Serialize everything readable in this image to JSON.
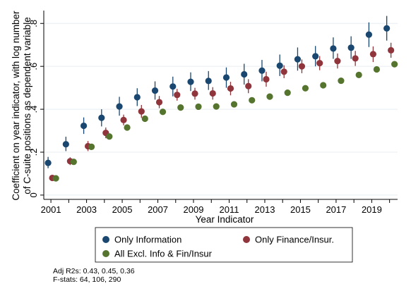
{
  "chart_data": {
    "type": "scatter",
    "ylabel": [
      "Coefficient on year indicator, with log number",
      "of C-suite positions as dependent variable"
    ],
    "xlabel": "Year Indicator",
    "x_tick_labels": [
      "2001",
      "2003",
      "2005",
      "2007",
      "2009",
      "2011",
      "2013",
      "2015",
      "2017",
      "2019"
    ],
    "y_tick_labels": [
      "0",
      ".2",
      ".4",
      ".6",
      ".8"
    ],
    "y_ticks": [
      0,
      0.2,
      0.4,
      0.6,
      0.8
    ],
    "x_range": [
      2000.6,
      2020.45
    ],
    "y_range": [
      -0.02,
      0.86
    ],
    "grid": "horizontal",
    "legend_position": "bottom",
    "series": [
      {
        "name": "Only Information",
        "color": "#1a476f",
        "x": [
          2001,
          2002,
          2003,
          2004,
          2005,
          2006,
          2007,
          2008,
          2009,
          2010,
          2011,
          2012,
          2013,
          2014,
          2015,
          2016,
          2017,
          2018,
          2019,
          2020
        ],
        "y": [
          0.15,
          0.237,
          0.323,
          0.36,
          0.413,
          0.456,
          0.487,
          0.506,
          0.528,
          0.532,
          0.548,
          0.563,
          0.58,
          0.603,
          0.633,
          0.647,
          0.683,
          0.687,
          0.748,
          0.777
        ],
        "ci_low": [
          0.125,
          0.205,
          0.285,
          0.32,
          0.37,
          0.415,
          0.445,
          0.46,
          0.485,
          0.49,
          0.5,
          0.515,
          0.53,
          0.555,
          0.58,
          0.6,
          0.635,
          0.635,
          0.69,
          0.72
        ],
        "ci_high": [
          0.178,
          0.272,
          0.362,
          0.4,
          0.458,
          0.498,
          0.53,
          0.552,
          0.572,
          0.578,
          0.595,
          0.612,
          0.63,
          0.655,
          0.688,
          0.695,
          0.735,
          0.74,
          0.805,
          0.835
        ]
      },
      {
        "name": "Only Finance/Insur.",
        "color": "#90353b",
        "x": [
          2001,
          2002,
          2003,
          2004,
          2005,
          2006,
          2007,
          2008,
          2009,
          2010,
          2011,
          2012,
          2013,
          2014,
          2015,
          2016,
          2017,
          2018,
          2019,
          2020
        ],
        "y": [
          0.08,
          0.158,
          0.228,
          0.29,
          0.35,
          0.39,
          0.433,
          0.467,
          0.473,
          0.474,
          0.497,
          0.508,
          0.54,
          0.575,
          0.6,
          0.615,
          0.625,
          0.637,
          0.657,
          0.675
        ],
        "ci_low": [
          0.068,
          0.14,
          0.205,
          0.265,
          0.325,
          0.36,
          0.405,
          0.44,
          0.445,
          0.445,
          0.465,
          0.475,
          0.505,
          0.545,
          0.568,
          0.582,
          0.59,
          0.602,
          0.62,
          0.64
        ],
        "ci_high": [
          0.092,
          0.176,
          0.252,
          0.315,
          0.375,
          0.42,
          0.462,
          0.495,
          0.5,
          0.503,
          0.528,
          0.54,
          0.575,
          0.605,
          0.632,
          0.648,
          0.66,
          0.672,
          0.693,
          0.71
        ]
      },
      {
        "name": "All Excl. Info & Fin/Insur",
        "color": "#55752f",
        "x": [
          2001,
          2002,
          2003,
          2004,
          2005,
          2006,
          2007,
          2008,
          2009,
          2010,
          2011,
          2012,
          2013,
          2014,
          2015,
          2016,
          2017,
          2018,
          2019,
          2020
        ],
        "y": [
          0.078,
          0.155,
          0.225,
          0.273,
          0.315,
          0.356,
          0.388,
          0.408,
          0.412,
          0.413,
          0.423,
          0.442,
          0.459,
          0.477,
          0.498,
          0.512,
          0.533,
          0.56,
          0.586,
          0.61
        ],
        "ci_low": [
          0.072,
          0.148,
          0.218,
          0.266,
          0.308,
          0.349,
          0.381,
          0.401,
          0.405,
          0.406,
          0.416,
          0.435,
          0.452,
          0.47,
          0.491,
          0.505,
          0.525,
          0.552,
          0.578,
          0.602
        ],
        "ci_high": [
          0.084,
          0.162,
          0.232,
          0.28,
          0.322,
          0.363,
          0.395,
          0.415,
          0.419,
          0.42,
          0.43,
          0.449,
          0.466,
          0.484,
          0.505,
          0.519,
          0.541,
          0.568,
          0.594,
          0.618
        ]
      }
    ],
    "notes": [
      "Adj R2s: 0.43, 0.45, 0.36",
      "F-stats: 64, 106, 290"
    ]
  }
}
